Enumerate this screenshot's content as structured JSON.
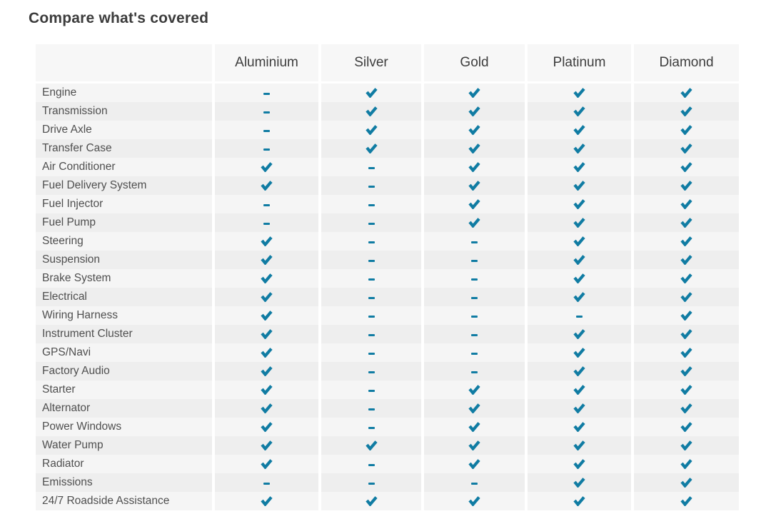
{
  "page": {
    "title": "Compare what's covered"
  },
  "table": {
    "plans": [
      "Aluminium",
      "Silver",
      "Gold",
      "Platinum",
      "Diamond"
    ],
    "rows": [
      {
        "label": "Engine",
        "coverage": [
          false,
          true,
          true,
          true,
          true
        ]
      },
      {
        "label": "Transmission",
        "coverage": [
          false,
          true,
          true,
          true,
          true
        ]
      },
      {
        "label": "Drive Axle",
        "coverage": [
          false,
          true,
          true,
          true,
          true
        ]
      },
      {
        "label": "Transfer Case",
        "coverage": [
          false,
          true,
          true,
          true,
          true
        ]
      },
      {
        "label": "Air Conditioner",
        "coverage": [
          true,
          false,
          true,
          true,
          true
        ]
      },
      {
        "label": "Fuel Delivery System",
        "coverage": [
          true,
          false,
          true,
          true,
          true
        ]
      },
      {
        "label": "Fuel Injector",
        "coverage": [
          false,
          false,
          true,
          true,
          true
        ]
      },
      {
        "label": "Fuel Pump",
        "coverage": [
          false,
          false,
          true,
          true,
          true
        ]
      },
      {
        "label": "Steering",
        "coverage": [
          true,
          false,
          false,
          true,
          true
        ]
      },
      {
        "label": "Suspension",
        "coverage": [
          true,
          false,
          false,
          true,
          true
        ]
      },
      {
        "label": "Brake System",
        "coverage": [
          true,
          false,
          false,
          true,
          true
        ]
      },
      {
        "label": "Electrical",
        "coverage": [
          true,
          false,
          false,
          true,
          true
        ]
      },
      {
        "label": "Wiring Harness",
        "coverage": [
          true,
          false,
          false,
          false,
          true
        ]
      },
      {
        "label": "Instrument Cluster",
        "coverage": [
          true,
          false,
          false,
          true,
          true
        ]
      },
      {
        "label": "GPS/Navi",
        "coverage": [
          true,
          false,
          false,
          true,
          true
        ]
      },
      {
        "label": "Factory Audio",
        "coverage": [
          true,
          false,
          false,
          true,
          true
        ]
      },
      {
        "label": "Starter",
        "coverage": [
          true,
          false,
          true,
          true,
          true
        ]
      },
      {
        "label": "Alternator",
        "coverage": [
          true,
          false,
          true,
          true,
          true
        ]
      },
      {
        "label": "Power Windows",
        "coverage": [
          true,
          false,
          true,
          true,
          true
        ]
      },
      {
        "label": "Water Pump",
        "coverage": [
          true,
          true,
          true,
          true,
          true
        ]
      },
      {
        "label": "Radiator",
        "coverage": [
          true,
          false,
          true,
          true,
          true
        ]
      },
      {
        "label": "Emissions",
        "coverage": [
          false,
          false,
          false,
          true,
          true
        ]
      },
      {
        "label": "24/7 Roadside Assistance",
        "coverage": [
          true,
          true,
          true,
          true,
          true
        ]
      }
    ],
    "icons": {
      "covered": "check-icon",
      "not_covered": "dash-icon"
    },
    "colors": {
      "accent": "#107ca3",
      "header_bg": "#f7f7f7",
      "stripe_light": "#f5f5f5",
      "stripe_dark": "#eeeeee",
      "title_text": "#3c3c3c",
      "header_text": "#3d3d3d",
      "row_text": "#4f4f4f"
    }
  }
}
